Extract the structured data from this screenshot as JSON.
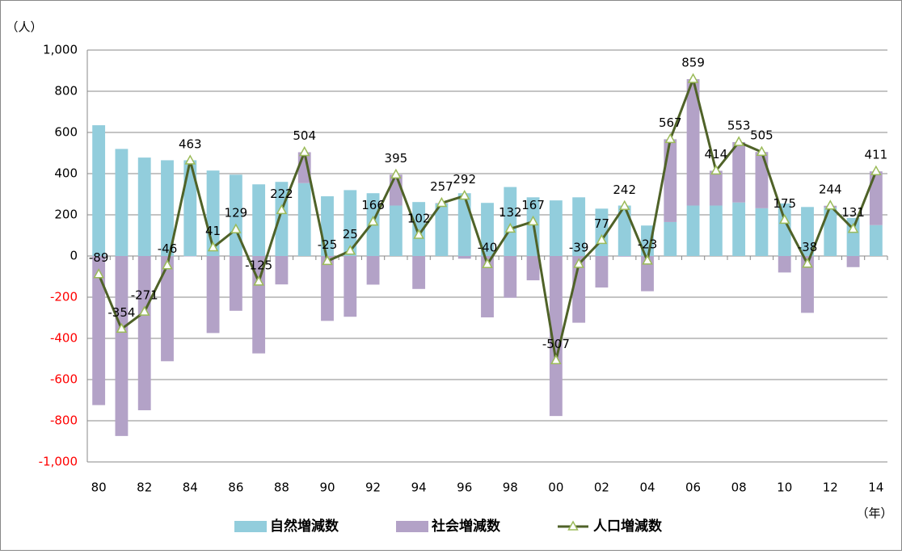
{
  "chart_data": {
    "type": "bar-line",
    "y_label": "（人）",
    "x_label": "（年）",
    "categories": [
      "80",
      null,
      "82",
      null,
      "84",
      null,
      "86",
      null,
      "88",
      null,
      "90",
      null,
      "92",
      null,
      "94",
      null,
      "96",
      null,
      "98",
      null,
      "00",
      null,
      "02",
      null,
      "04",
      null,
      "06",
      null,
      "08",
      null,
      "10",
      null,
      "12",
      null,
      "14"
    ],
    "series": [
      {
        "name": "自然増減数",
        "type": "bar",
        "color": "#92cddc",
        "values": [
          635,
          520,
          478,
          465,
          465,
          415,
          395,
          348,
          360,
          354,
          290,
          320,
          305,
          245,
          262,
          255,
          305,
          258,
          335,
          285,
          270,
          285,
          230,
          245,
          148,
          165,
          245,
          245,
          260,
          232,
          255,
          238,
          235,
          185,
          150
        ]
      },
      {
        "name": "社会増減数",
        "type": "bar",
        "color": "#b3a2c7",
        "values": [
          -724,
          -874,
          -749,
          -511,
          -2,
          -374,
          -266,
          -473,
          -138,
          150,
          -315,
          -295,
          -139,
          150,
          -160,
          2,
          -13,
          -298,
          -203,
          -118,
          -777,
          -324,
          -153,
          -3,
          -171,
          402,
          614,
          169,
          293,
          273,
          -80,
          -276,
          9,
          -54,
          261
        ]
      },
      {
        "name": "人口増減数",
        "type": "line",
        "color": "#4f6228",
        "marker_color": "#9bbb59",
        "values": [
          -89,
          -354,
          -271,
          -46,
          463,
          41,
          129,
          -125,
          222,
          504,
          -25,
          25,
          166,
          395,
          102,
          257,
          292,
          -40,
          132,
          167,
          -507,
          -39,
          77,
          242,
          -23,
          567,
          859,
          414,
          553,
          505,
          175,
          -38,
          244,
          131,
          411
        ]
      }
    ],
    "ylim": [
      -1000,
      1000
    ],
    "yticks": [
      {
        "value": -1000,
        "label": "-1,000"
      },
      -800,
      -600,
      -400,
      -200,
      0,
      200,
      400,
      600,
      800,
      {
        "value": 1000,
        "label": "1,000"
      }
    ],
    "negative_tick_color": "#ff0000",
    "grid": true,
    "legend": "bottom"
  }
}
